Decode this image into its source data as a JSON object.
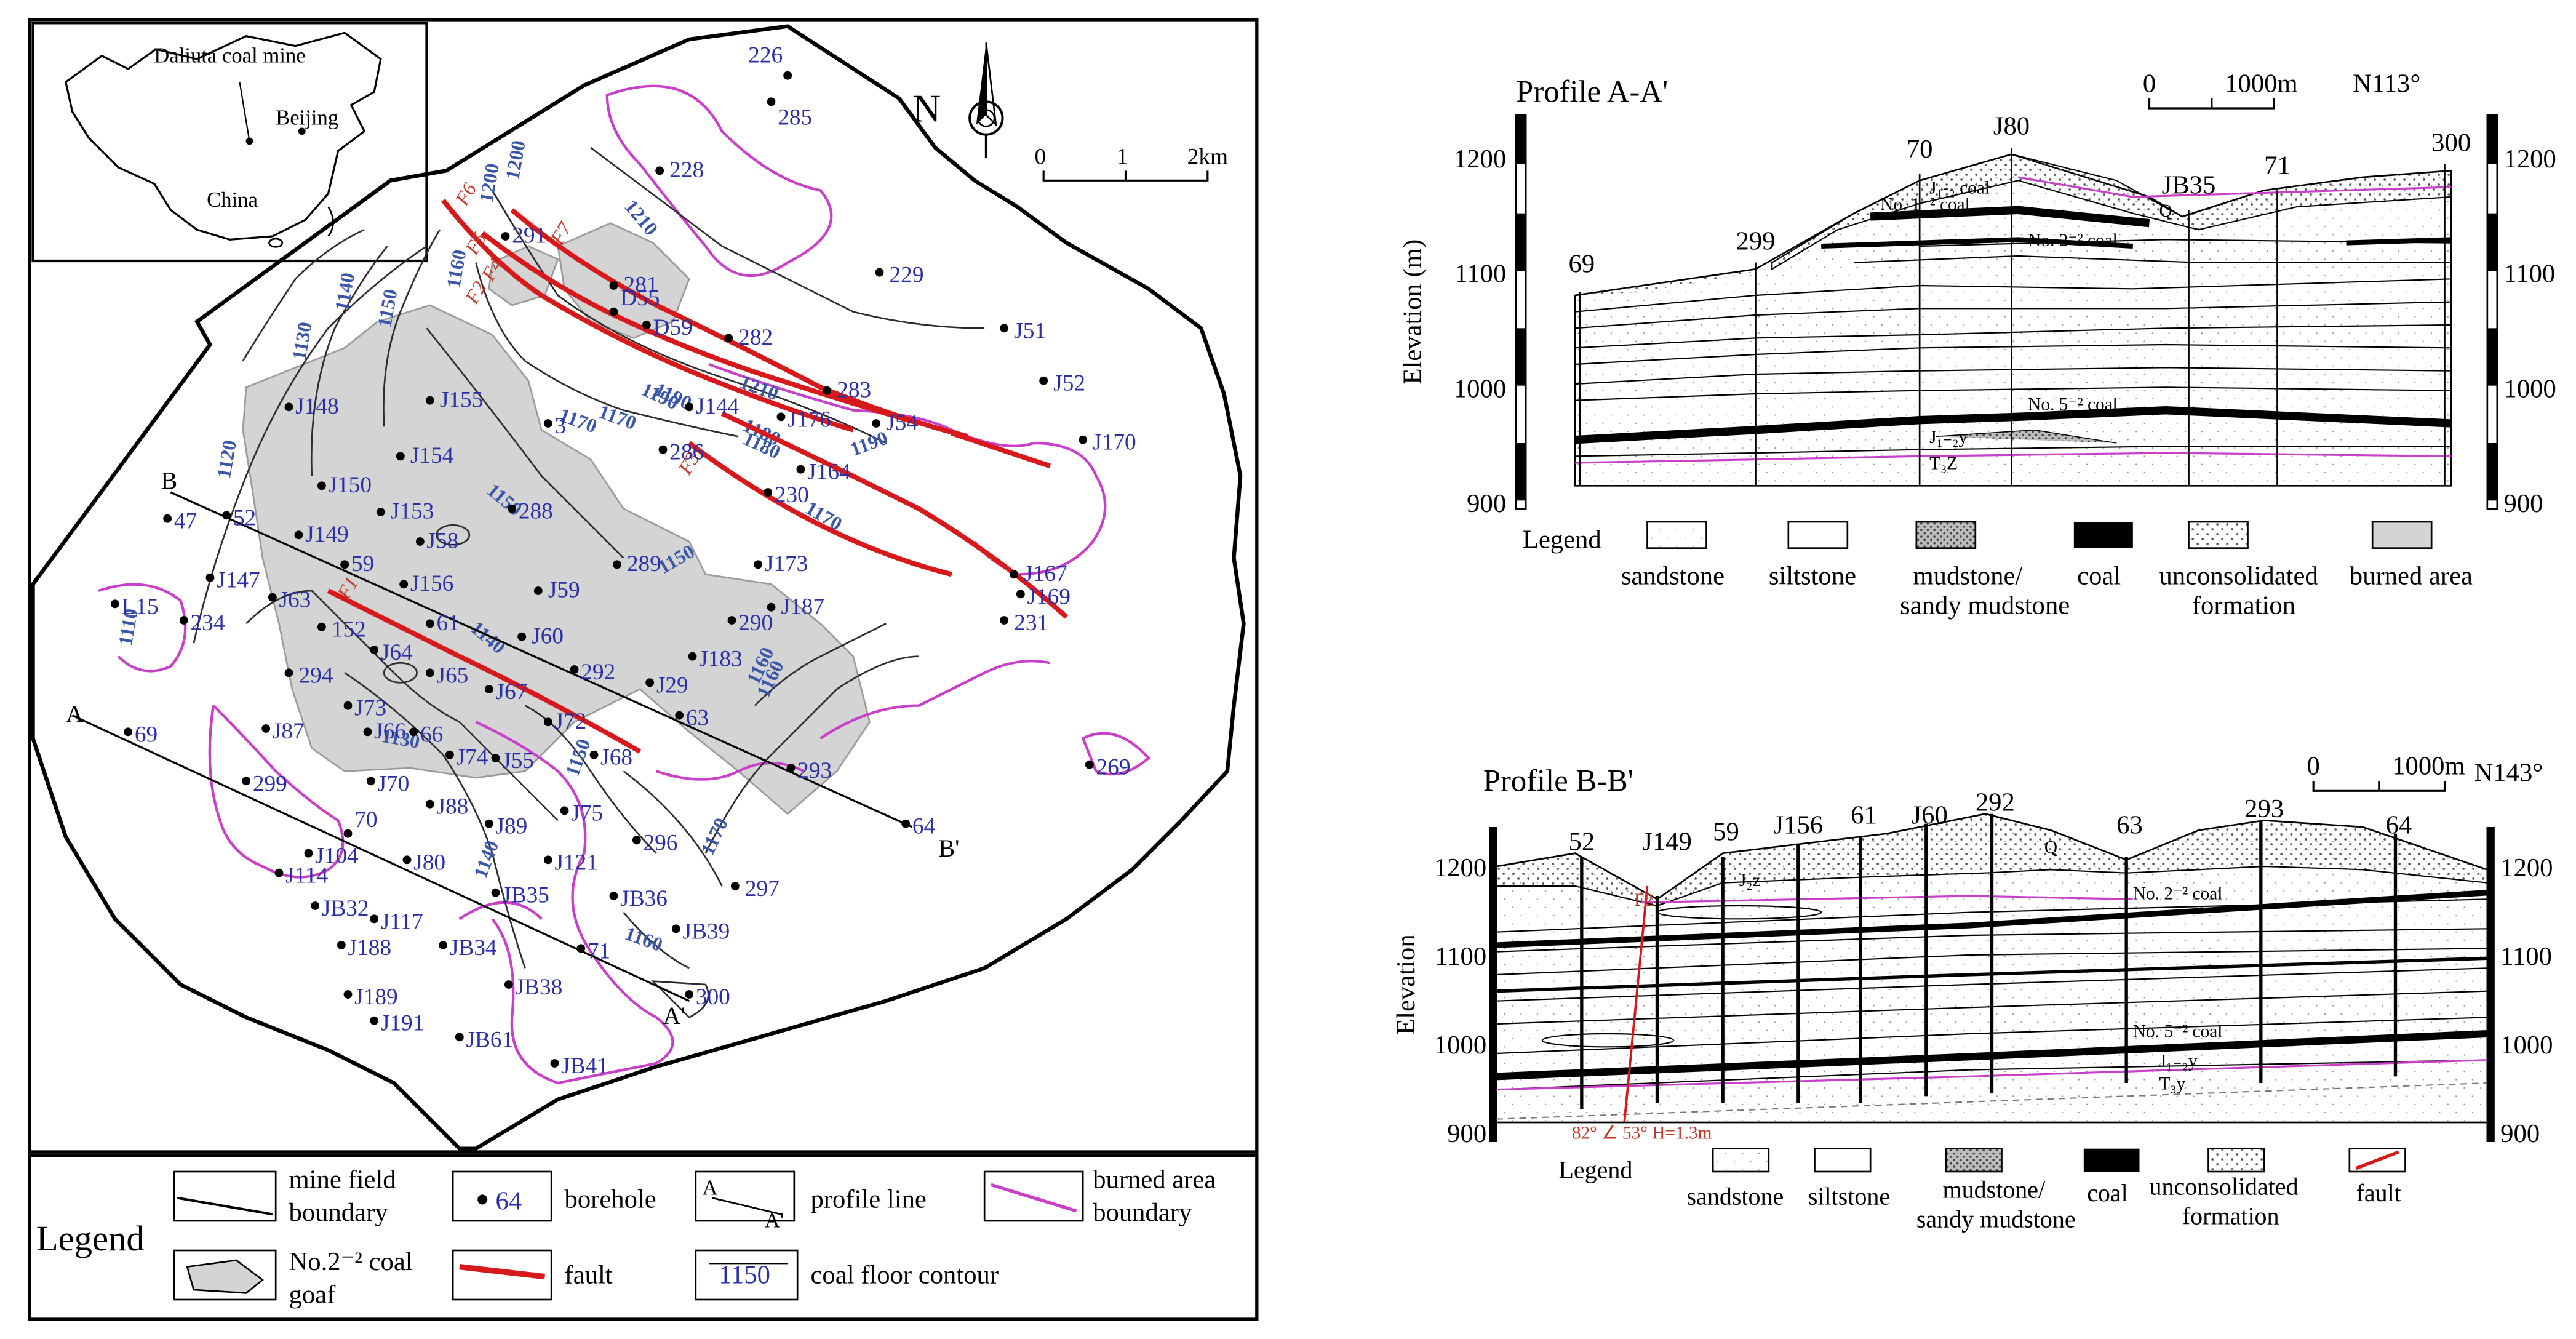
{
  "colors": {
    "fault": "#d8191b",
    "burn": "#c93fc9",
    "goaf": "#d4d4d4",
    "contour": "#3a56a8",
    "borehole_label": "#2a2fa8",
    "fault_label": "#c0392b"
  },
  "map": {
    "inset": {
      "mine": "Daliuta coal mine",
      "beijing": "Beijing",
      "china": "China"
    },
    "north": "N",
    "scale": {
      "ticks": [
        "0",
        "1",
        "2km"
      ]
    },
    "contours": [
      "1110",
      "1120",
      "1130",
      "1140",
      "1150",
      "1150",
      "1160",
      "1170",
      "1180",
      "1190",
      "1200",
      "1210",
      "1140",
      "1150",
      "1160",
      "1170",
      "1180",
      "1190",
      "1200",
      "1210",
      "1140",
      "1130",
      "1150",
      "1160",
      "1170",
      "1190",
      "1160",
      "1170"
    ],
    "faults": [
      "F1",
      "F2",
      "F3",
      "F4",
      "F5",
      "F6",
      "F7"
    ],
    "boreholes": [
      "226",
      "285",
      "228",
      "229",
      "J51",
      "J52",
      "J170",
      "291",
      "281",
      "D55",
      "D59",
      "282",
      "283",
      "J176",
      "J54",
      "J144",
      "J155",
      "J148",
      "J154",
      "J150",
      "J153",
      "J149",
      "J147",
      "J63",
      "J58",
      "J156",
      "J59",
      "289",
      "J173",
      "J167",
      "J169",
      "231",
      "J187",
      "290",
      "J183",
      "47",
      "52",
      "59",
      "L15",
      "234",
      "152",
      "J64",
      "61",
      "J65",
      "J67",
      "J60",
      "292",
      "J29",
      "63",
      "294",
      "J73",
      "J72",
      "J87",
      "J66",
      "J70",
      "J74",
      "J55",
      "J68",
      "293",
      "69",
      "299",
      "J88",
      "J89",
      "J75",
      "64",
      "269",
      "70",
      "J104",
      "J80",
      "J114",
      "J121",
      "296",
      "JB32",
      "J117",
      "JB35",
      "JB36",
      "297",
      "J188",
      "JB34",
      "JB39",
      "71",
      "J189",
      "JB38",
      "300",
      "J191",
      "JB61",
      "JB41",
      "288",
      "286",
      "230",
      "J164",
      "3",
      "66"
    ],
    "profile_labels": {
      "A": "A",
      "A_end": "A'",
      "B": "B",
      "B_end": "B'"
    }
  },
  "legend": {
    "title": "Legend",
    "items": {
      "mine_boundary": "mine field boundary",
      "goaf": "No.2⁻² coal goaf",
      "borehole": "borehole",
      "borehole_sample": "64",
      "fault": "fault",
      "profile_line": "profile line",
      "profile_A": "A",
      "profile_Ap": "A'",
      "contour": "coal floor contour",
      "contour_sample": "1150",
      "burn_boundary": "burned area boundary"
    }
  },
  "profile_a": {
    "title": "Profile A-A'",
    "scale_left": "0",
    "scale_right": "1000m",
    "bearing": "N113°",
    "y_label": "Elevation (m)",
    "y_ticks": [
      "1200",
      "1100",
      "1000",
      "900"
    ],
    "boreholes": [
      "69",
      "299",
      "70",
      "J80",
      "JB35",
      "71",
      "300"
    ],
    "layers": {
      "n1": "J₁-₂ coal",
      "coal_1": "No. 1⁻² coal",
      "coal_2": "No. 2⁻² coal",
      "coal_5": "No. 5⁻² coal",
      "q": "Q",
      "j1": "J₁₋₂y",
      "t3": "T₃Z"
    },
    "legend": [
      "Legend",
      "sandstone",
      "siltstone",
      "mudstone/ sandy mudstone",
      "coal",
      "unconsolidated formation",
      "burned area"
    ]
  },
  "profile_b": {
    "title": "Profile B-B'",
    "scale_left": "0",
    "scale_right": "1000m",
    "bearing": "N143°",
    "y_label": "Elevation",
    "y_ticks": [
      "1200",
      "1100",
      "1000",
      "900"
    ],
    "boreholes": [
      "52",
      "J149",
      "59",
      "J156",
      "61",
      "J60",
      "292",
      "63",
      "293",
      "64"
    ],
    "layers": {
      "coal_2": "No. 2⁻² coal",
      "coal_5": "No. 5⁻² coal",
      "j2": "J₂z",
      "q": "Q",
      "j1": "J₁₋₂y",
      "t3": "T₃y",
      "fault": "F2",
      "dip": "82° ∠ 53° H=1.3m"
    },
    "legend": [
      "Legend",
      "sandstone",
      "siltstone",
      "mudstone/ sandy mudstone",
      "coal",
      "unconsolidated formation",
      "fault"
    ]
  }
}
